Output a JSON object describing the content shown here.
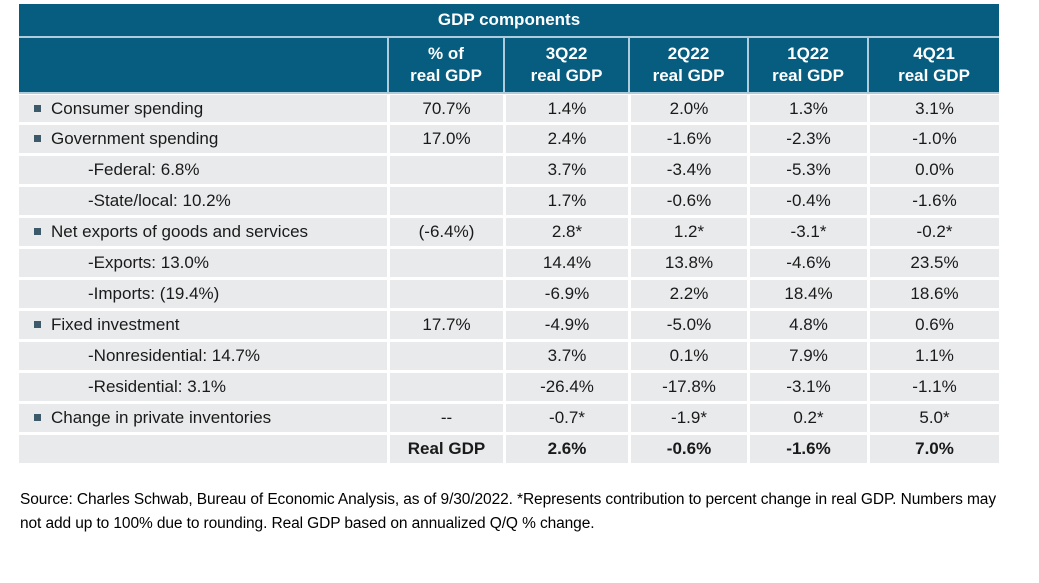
{
  "chart_data": {
    "type": "table",
    "title": "GDP components",
    "columns": [
      "",
      "% of\nreal GDP",
      "3Q22\nreal GDP",
      "2Q22\nreal GDP",
      "1Q22\nreal GDP",
      "4Q21\nreal GDP"
    ],
    "rows": [
      {
        "label": "Consumer spending",
        "level": "main",
        "values": [
          "70.7%",
          "1.4%",
          "2.0%",
          "1.3%",
          "3.1%"
        ]
      },
      {
        "label": "Government spending",
        "level": "main",
        "values": [
          "17.0%",
          "2.4%",
          "-1.6%",
          "-2.3%",
          "-1.0%"
        ]
      },
      {
        "label": "-Federal: 6.8%",
        "level": "sub",
        "values": [
          "",
          "3.7%",
          "-3.4%",
          "-5.3%",
          "0.0%"
        ]
      },
      {
        "label": "-State/local: 10.2%",
        "level": "sub",
        "values": [
          "",
          "1.7%",
          "-0.6%",
          "-0.4%",
          "-1.6%"
        ]
      },
      {
        "label": "Net exports of goods and services",
        "level": "main",
        "values": [
          "(-6.4%)",
          "2.8*",
          "1.2*",
          "-3.1*",
          "-0.2*"
        ]
      },
      {
        "label": "-Exports: 13.0%",
        "level": "sub",
        "values": [
          "",
          "14.4%",
          "13.8%",
          "-4.6%",
          "23.5%"
        ]
      },
      {
        "label": "-Imports: (19.4%)",
        "level": "sub",
        "values": [
          "",
          "-6.9%",
          "2.2%",
          "18.4%",
          "18.6%"
        ]
      },
      {
        "label": "Fixed investment",
        "level": "main",
        "values": [
          "17.7%",
          "-4.9%",
          "-5.0%",
          "4.8%",
          "0.6%"
        ]
      },
      {
        "label": "-Nonresidential: 14.7%",
        "level": "sub",
        "values": [
          "",
          "3.7%",
          "0.1%",
          "7.9%",
          "1.1%"
        ]
      },
      {
        "label": "-Residential: 3.1%",
        "level": "sub",
        "values": [
          "",
          "-26.4%",
          "-17.8%",
          "-3.1%",
          "-1.1%"
        ]
      },
      {
        "label": "Change in private inventories",
        "level": "main",
        "values": [
          "--",
          "-0.7*",
          "-1.9*",
          "0.2*",
          "5.0*"
        ]
      },
      {
        "label": "",
        "level": "total",
        "values": [
          "Real GDP",
          "2.6%",
          "-0.6%",
          "-1.6%",
          "7.0%"
        ]
      }
    ]
  },
  "footer": {
    "source_note": "Source: Charles Schwab, Bureau of Economic Analysis, as of 9/30/2022. *Represents contribution to percent change in real GDP. Numbers may not add up to 100% due to rounding. Real GDP based on annualized Q/Q % change."
  },
  "colors": {
    "header_bg": "#065D80",
    "header_divider": "#AFCCDC",
    "cell_bg": "#E8EAEC",
    "bullet": "#3D5A6B",
    "text": "#1A1A1A"
  }
}
